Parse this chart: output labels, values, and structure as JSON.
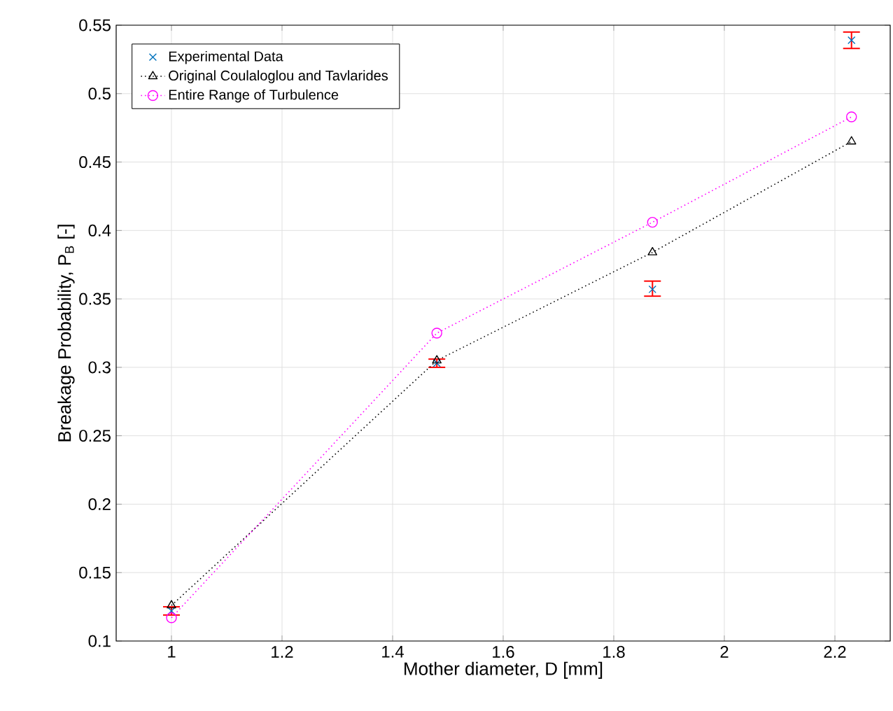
{
  "chart_data": {
    "type": "scatter",
    "xlabel": "Mother diameter, D [mm]",
    "ylabel": "Breakage Probability, P$_{B}$ [-]",
    "x": [
      1,
      1.48,
      1.87,
      2.23
    ],
    "series": [
      {
        "name": "Experimental Data",
        "color": "#0072bd",
        "marker": "cross",
        "values": [
          0.122,
          0.303,
          0.357,
          0.539
        ],
        "errors": [
          0.003,
          0.003,
          [
            0.352,
            0.363
          ],
          [
            0.533,
            0.545
          ]
        ]
      },
      {
        "name": "Original Coulaloglou and Tavlarides",
        "type": "line",
        "color": "#000000",
        "marker": "triangle",
        "line_style": "dotted",
        "values": [
          0.126,
          0.305,
          0.384,
          0.465
        ]
      },
      {
        "name": "Entire Range of Turbulence",
        "type": "line",
        "color": "#ff00ff",
        "marker": "circle",
        "line_style": "dotted",
        "values": [
          0.117,
          0.325,
          0.406,
          0.483
        ]
      }
    ],
    "xlim": [
      0.9,
      2.3
    ],
    "ylim": [
      0.1,
      0.55
    ],
    "xticks": [
      1,
      1.2,
      1.4,
      1.6,
      1.8,
      2,
      2.2
    ],
    "yticks": [
      0.1,
      0.15,
      0.2,
      0.25,
      0.3,
      0.35,
      0.4,
      0.45,
      0.5,
      0.55
    ],
    "grid": true,
    "legend": "top left"
  }
}
